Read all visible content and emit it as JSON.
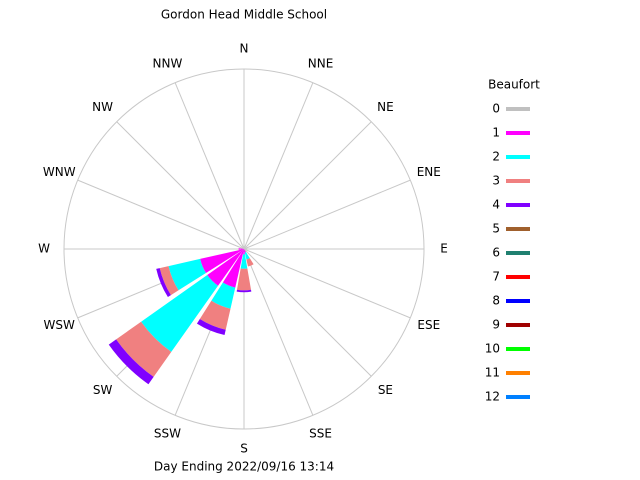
{
  "chart_data": {
    "type": "windrose",
    "title": "Gordon Head Middle School",
    "footer": "Day Ending 2022/09/16 13:14",
    "legend_title": "Beaufort",
    "directions": [
      "N",
      "NNE",
      "NE",
      "ENE",
      "E",
      "ESE",
      "SE",
      "SSE",
      "S",
      "SSW",
      "SW",
      "WSW",
      "W",
      "WNW",
      "NW",
      "NNW"
    ],
    "rlim": [
      0,
      100
    ],
    "grid": true,
    "series": [
      {
        "name": "0",
        "color": "#c0c0c0",
        "values": [
          0,
          0,
          0,
          0,
          0,
          0,
          0,
          0,
          0,
          0,
          0,
          0,
          0,
          0,
          0,
          0
        ]
      },
      {
        "name": "1",
        "color": "#ff00ff",
        "values": [
          0,
          0,
          0,
          0,
          0,
          0,
          0,
          2,
          3,
          22,
          25,
          25,
          3,
          0,
          0,
          0
        ]
      },
      {
        "name": "2",
        "color": "#00ffff",
        "values": [
          0,
          0,
          0,
          0,
          0,
          0,
          0,
          4,
          8,
          12,
          45,
          18,
          0,
          0,
          0,
          0
        ]
      },
      {
        "name": "3",
        "color": "#f08080",
        "values": [
          0,
          0,
          0,
          0,
          0,
          0,
          0,
          4,
          12,
          12,
          17,
          5,
          0,
          0,
          0,
          0
        ]
      },
      {
        "name": "4",
        "color": "#8000ff",
        "values": [
          0,
          0,
          0,
          0,
          0,
          0,
          0,
          0,
          1,
          3,
          5,
          2,
          0,
          0,
          0,
          0
        ]
      },
      {
        "name": "5",
        "color": "#a0602d",
        "values": [
          0,
          0,
          0,
          0,
          0,
          0,
          0,
          0,
          0,
          0,
          0,
          0,
          0,
          0,
          0,
          0
        ]
      },
      {
        "name": "6",
        "color": "#208070",
        "values": [
          0,
          0,
          0,
          0,
          0,
          0,
          0,
          0,
          0,
          0,
          0,
          0,
          0,
          0,
          0,
          0
        ]
      },
      {
        "name": "7",
        "color": "#ff0000",
        "values": [
          0,
          0,
          0,
          0,
          0,
          0,
          0,
          0,
          0,
          0,
          0,
          0,
          0,
          0,
          0,
          0
        ]
      },
      {
        "name": "8",
        "color": "#0000ff",
        "values": [
          0,
          0,
          0,
          0,
          0,
          0,
          0,
          0,
          0,
          0,
          0,
          0,
          0,
          0,
          0,
          0
        ]
      },
      {
        "name": "9",
        "color": "#a00000",
        "values": [
          0,
          0,
          0,
          0,
          0,
          0,
          0,
          0,
          0,
          0,
          0,
          0,
          0,
          0,
          0,
          0
        ]
      },
      {
        "name": "10",
        "color": "#00ff00",
        "values": [
          0,
          0,
          0,
          0,
          0,
          0,
          0,
          0,
          0,
          0,
          0,
          0,
          0,
          0,
          0,
          0
        ]
      },
      {
        "name": "11",
        "color": "#ff8000",
        "values": [
          0,
          0,
          0,
          0,
          0,
          0,
          0,
          0,
          0,
          0,
          0,
          0,
          0,
          0,
          0,
          0
        ]
      },
      {
        "name": "12",
        "color": "#0080ff",
        "values": [
          0,
          0,
          0,
          0,
          0,
          0,
          0,
          0,
          0,
          0,
          0,
          0,
          0,
          0,
          0,
          0
        ]
      }
    ]
  }
}
